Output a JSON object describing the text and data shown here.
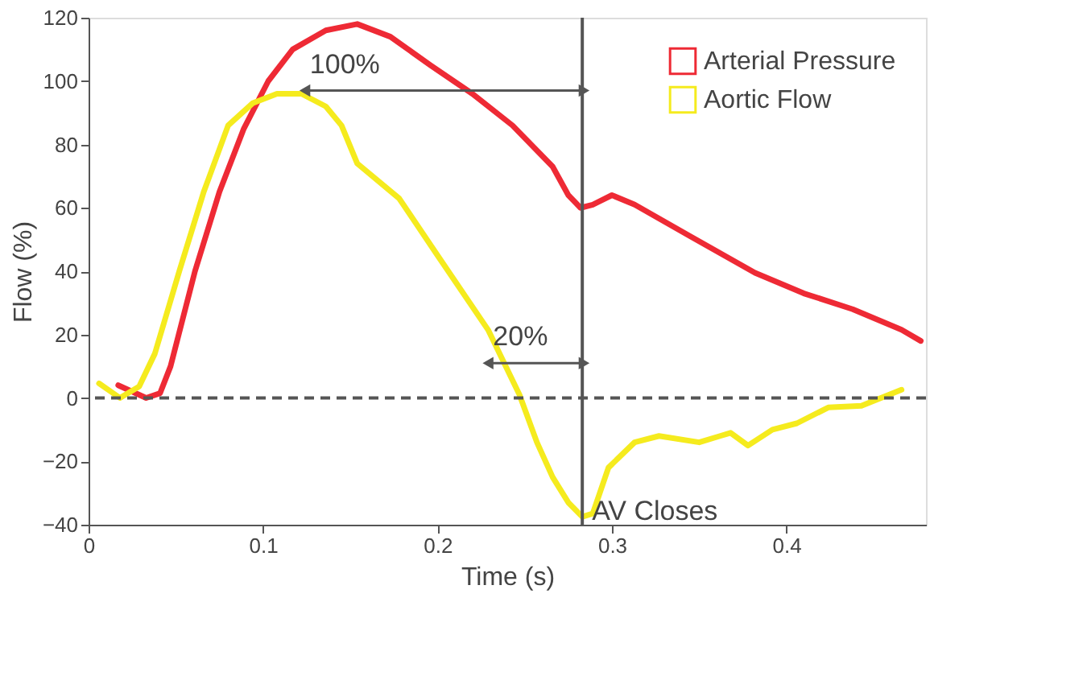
{
  "chart_data": {
    "type": "line",
    "xlabel": "Time (s)",
    "ylabel": "Flow (%)",
    "xlim": [
      0,
      0.48
    ],
    "ylim": [
      -40,
      120
    ],
    "xticks": [
      0,
      0.1,
      0.2,
      0.3,
      0.4
    ],
    "yticks": [
      -40,
      -20,
      0,
      20,
      40,
      60,
      80,
      100,
      120
    ],
    "grid": false,
    "legend": "top right",
    "marker": "none",
    "line_style": "solid",
    "series": [
      {
        "name": "Arterial Pressure",
        "color": "#ee2a35",
        "x": [
          0.017,
          0.033,
          0.041,
          0.047,
          0.061,
          0.075,
          0.089,
          0.103,
          0.117,
          0.136,
          0.154,
          0.173,
          0.196,
          0.22,
          0.243,
          0.266,
          0.275,
          0.282,
          0.289,
          0.3,
          0.313,
          0.345,
          0.382,
          0.41,
          0.438,
          0.466,
          0.477
        ],
        "values": [
          4,
          0,
          1.5,
          10,
          40,
          65,
          85,
          100,
          110,
          116,
          118,
          114,
          105,
          96,
          86,
          73,
          64,
          60,
          61,
          64,
          61,
          51,
          39.5,
          33,
          28,
          21.5,
          18
        ]
      },
      {
        "name": "Aortic Flow",
        "color": "#f5eb1e",
        "x": [
          0.006,
          0.018,
          0.029,
          0.038,
          0.052,
          0.066,
          0.08,
          0.094,
          0.108,
          0.122,
          0.136,
          0.145,
          0.154,
          0.178,
          0.2,
          0.229,
          0.247,
          0.257,
          0.266,
          0.275,
          0.283,
          0.289,
          0.298,
          0.313,
          0.327,
          0.35,
          0.362,
          0.368,
          0.378,
          0.392,
          0.406,
          0.424,
          0.443,
          0.466
        ],
        "values": [
          4.6,
          0,
          3.6,
          14,
          40,
          65,
          86,
          93,
          96,
          96,
          92,
          86,
          74,
          63,
          45,
          21.5,
          1,
          -14,
          -25,
          -33,
          -37.5,
          -36.5,
          -22,
          -14,
          -12,
          -14,
          -12,
          -11,
          -15,
          -10,
          -8,
          -3,
          -2.5,
          2.6
        ]
      }
    ],
    "ref_lines": [
      {
        "axis": "y",
        "value": 0,
        "line_style": "dashed",
        "color": "#555555"
      },
      {
        "axis": "x",
        "value": 0.283,
        "label": "AV Closes",
        "line_style": "solid",
        "color": "#555555"
      }
    ],
    "annotations": [
      {
        "text": "100%",
        "x": 0.125,
        "y": 97
      },
      {
        "text": "20%",
        "x": 0.23,
        "y": 11
      }
    ]
  }
}
